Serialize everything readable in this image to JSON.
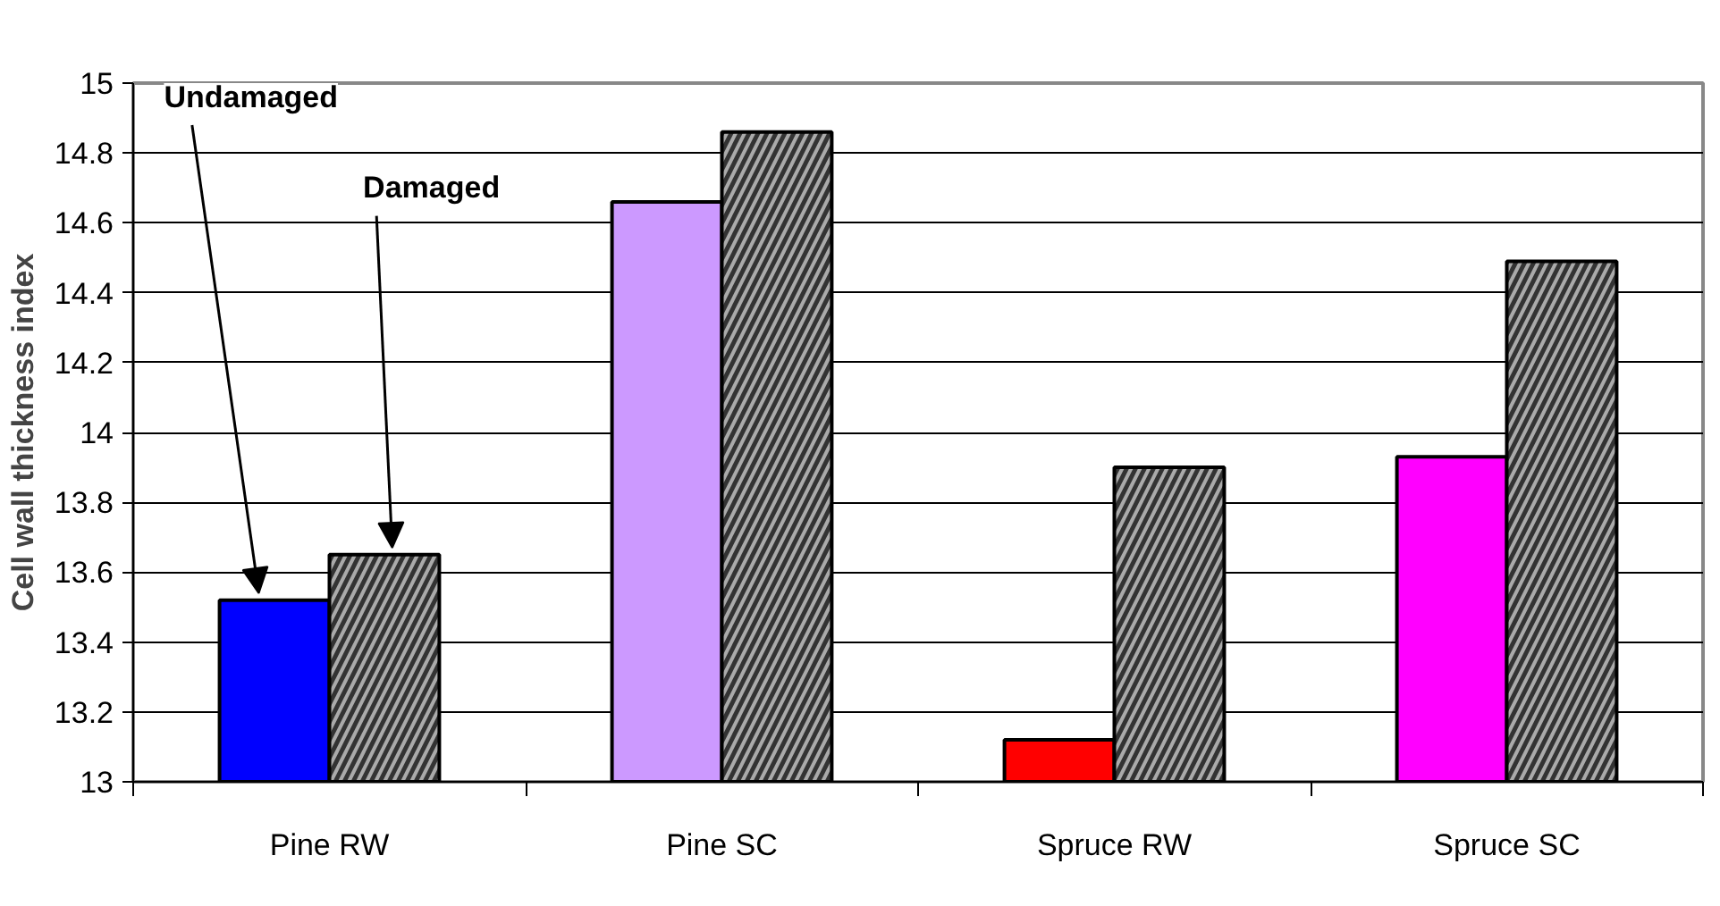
{
  "chart_data": {
    "type": "bar",
    "ylabel": "Cell wall thickness index",
    "categories": [
      "Pine RW",
      "Pine SC",
      "Spruce RW",
      "Spruce SC"
    ],
    "series": [
      {
        "name": "Undamaged",
        "colors": [
          "#0000ff",
          "#cc99ff",
          "#ff0000",
          "#ff00ff"
        ],
        "values": [
          13.52,
          14.66,
          13.12,
          13.93
        ]
      },
      {
        "name": "Damaged",
        "color": "#333333",
        "values": [
          13.65,
          14.86,
          13.9,
          14.49
        ]
      }
    ],
    "ylim": [
      13,
      15
    ],
    "yticks": [
      13,
      13.2,
      13.4,
      13.6,
      13.8,
      14,
      14.2,
      14.4,
      14.6,
      14.8,
      15
    ],
    "grid": "y"
  }
}
